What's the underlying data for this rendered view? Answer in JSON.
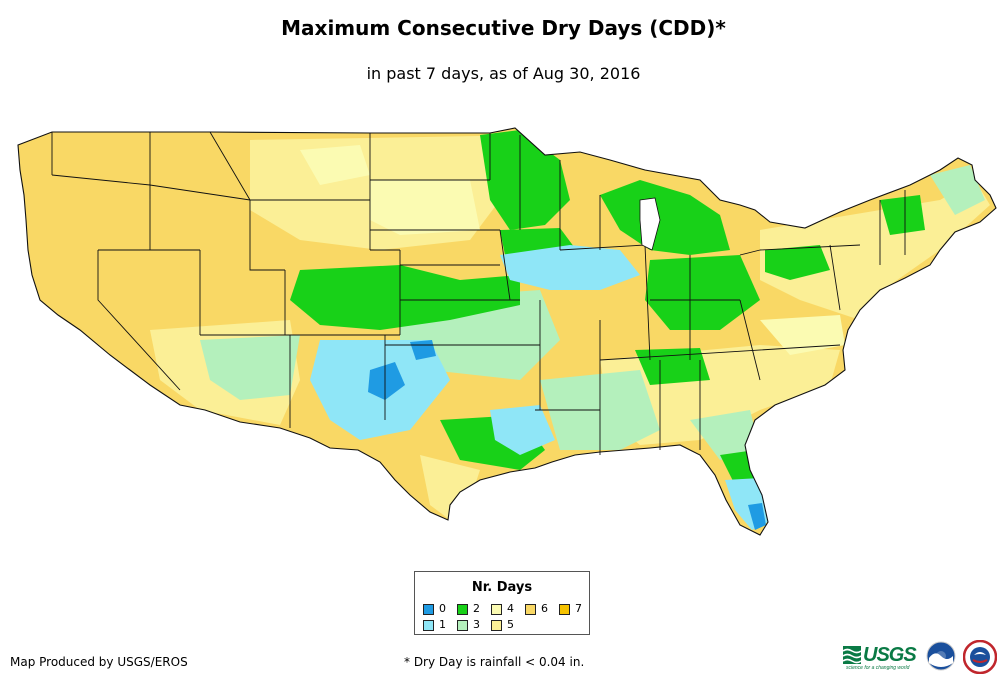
{
  "title": "Maximum Consecutive Dry Days (CDD)*",
  "subtitle": "in past 7 days, as of Aug 30, 2016",
  "map": {
    "region": "contiguous-united-states",
    "dominant_category": "6"
  },
  "legend": {
    "title": "Nr. Days",
    "items": [
      {
        "label": "0",
        "color": "#1f9be3"
      },
      {
        "label": "1",
        "color": "#8fe6f7"
      },
      {
        "label": "2",
        "color": "#18d118"
      },
      {
        "label": "3",
        "color": "#b4f0bc"
      },
      {
        "label": "4",
        "color": "#fbfbb2"
      },
      {
        "label": "5",
        "color": "#fbef96"
      },
      {
        "label": "6",
        "color": "#f9d865"
      },
      {
        "label": "7",
        "color": "#f6c300"
      }
    ]
  },
  "credit": "Map Produced by USGS/EROS",
  "footnote": "* Dry Day is rainfall < 0.04 in.",
  "logos": {
    "usgs_text": "USGS",
    "usgs_tagline": "science for a changing world"
  }
}
